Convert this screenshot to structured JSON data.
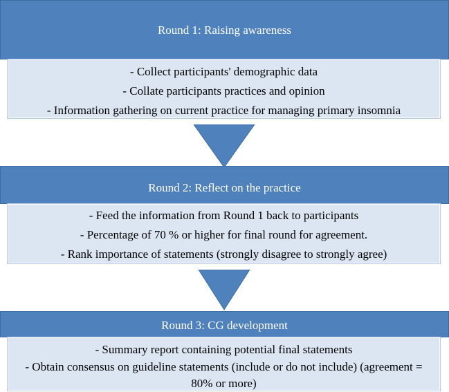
{
  "rounds": [
    {
      "title": "Round 1: Raising awareness",
      "items": [
        "- Collect participants' demographic data",
        "- Collate participants practices and opinion",
        "- Information gathering on current practice for managing primary insomnia"
      ]
    },
    {
      "title": "Round 2: Reflect on the practice",
      "items": [
        "- Feed the information from Round 1 back to participants",
        "-  Percentage of 70 % or higher for final round for agreement.",
        "- Rank importance of statements (strongly disagree to strongly agree)"
      ]
    },
    {
      "title": "Round 3: CG development",
      "items": [
        "- Summary report containing potential final statements",
        "- Obtain consensus on guideline statements (include or do not include) (agreement = 80% or more)"
      ]
    }
  ],
  "colors": {
    "header": "#4f81bd",
    "body": "#dce6f2",
    "arrow": "#4f81bd"
  }
}
